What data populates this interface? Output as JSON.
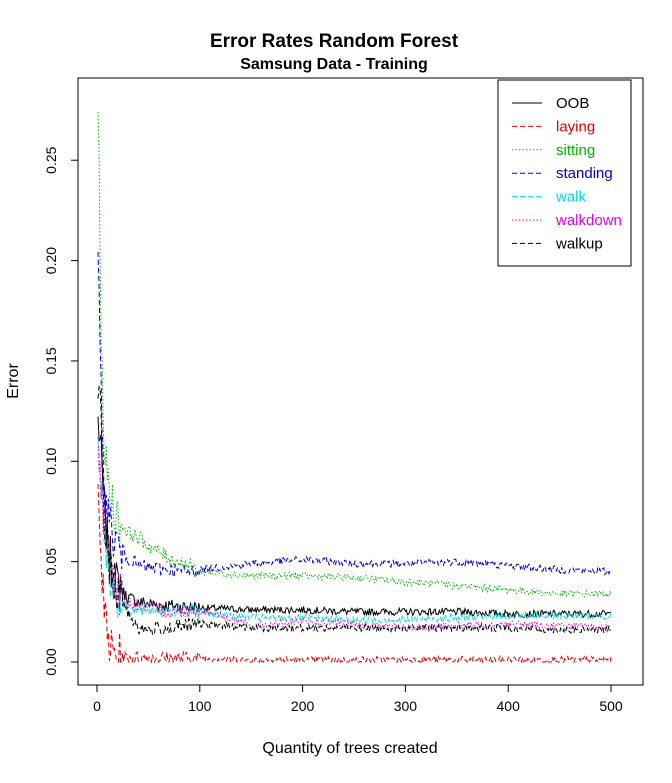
{
  "chart_data": {
    "type": "line",
    "title": "Error Rates Random Forest",
    "subtitle": "Samsung Data - Training",
    "xlabel": "Quantity of trees created",
    "ylabel": "Error",
    "xlim": [
      0,
      500
    ],
    "ylim": [
      0,
      0.28
    ],
    "xticks": [
      0,
      100,
      200,
      300,
      400,
      500
    ],
    "yticks": [
      0.0,
      0.05,
      0.1,
      0.15,
      0.2,
      0.25
    ],
    "xtick_labels": [
      "0",
      "100",
      "200",
      "300",
      "400",
      "500"
    ],
    "ytick_labels": [
      "0.00",
      "0.05",
      "0.10",
      "0.15",
      "0.20",
      "0.25"
    ],
    "grid": false,
    "legend_position": "top-right",
    "series": [
      {
        "name": "OOB",
        "color": "#000000",
        "dash": "solid",
        "x": [
          1,
          3,
          6,
          10,
          15,
          20,
          30,
          40,
          50,
          70,
          100,
          150,
          200,
          250,
          300,
          350,
          400,
          450,
          500
        ],
        "y": [
          0.12,
          0.11,
          0.085,
          0.06,
          0.045,
          0.038,
          0.032,
          0.03,
          0.029,
          0.028,
          0.027,
          0.026,
          0.026,
          0.025,
          0.025,
          0.025,
          0.024,
          0.024,
          0.024
        ]
      },
      {
        "name": "laying",
        "color": "#df0000",
        "dash": "dashed",
        "x": [
          1,
          3,
          5,
          8,
          12,
          16,
          20,
          30,
          50,
          100,
          150,
          200,
          300,
          400,
          500
        ],
        "y": [
          0.1,
          0.07,
          0.04,
          0.02,
          0.008,
          0.004,
          0.003,
          0.002,
          0.002,
          0.002,
          0.001,
          0.001,
          0.001,
          0.001,
          0.001
        ]
      },
      {
        "name": "sitting",
        "color": "#00b400",
        "dash": "dotted",
        "x": [
          1,
          3,
          5,
          8,
          12,
          16,
          20,
          30,
          40,
          50,
          70,
          90,
          100,
          150,
          200,
          250,
          300,
          350,
          400,
          450,
          500
        ],
        "y": [
          0.28,
          0.2,
          0.14,
          0.1,
          0.085,
          0.078,
          0.07,
          0.065,
          0.062,
          0.058,
          0.052,
          0.048,
          0.045,
          0.043,
          0.043,
          0.042,
          0.04,
          0.038,
          0.036,
          0.034,
          0.034
        ]
      },
      {
        "name": "standing",
        "color": "#0000d0",
        "dash": "dashed",
        "x": [
          1,
          3,
          5,
          8,
          12,
          16,
          20,
          30,
          40,
          50,
          70,
          90,
          100,
          150,
          200,
          250,
          300,
          350,
          400,
          450,
          500
        ],
        "y": [
          0.2,
          0.15,
          0.11,
          0.085,
          0.07,
          0.062,
          0.058,
          0.052,
          0.048,
          0.047,
          0.046,
          0.045,
          0.046,
          0.049,
          0.051,
          0.049,
          0.049,
          0.05,
          0.048,
          0.046,
          0.045
        ]
      },
      {
        "name": "walk",
        "color": "#00dcdc",
        "dash": "dashed",
        "x": [
          1,
          3,
          5,
          8,
          12,
          16,
          20,
          30,
          40,
          50,
          70,
          100,
          150,
          200,
          250,
          300,
          350,
          400,
          450,
          500
        ],
        "y": [
          0.12,
          0.1,
          0.08,
          0.06,
          0.045,
          0.038,
          0.032,
          0.027,
          0.025,
          0.026,
          0.026,
          0.025,
          0.022,
          0.022,
          0.021,
          0.021,
          0.022,
          0.023,
          0.023,
          0.023
        ]
      },
      {
        "name": "walkdown",
        "color": "#e000e0",
        "dash": "dotted",
        "x": [
          1,
          3,
          5,
          8,
          12,
          16,
          20,
          30,
          40,
          50,
          70,
          100,
          150,
          200,
          250,
          300,
          350,
          400,
          450,
          500
        ],
        "y": [
          0.11,
          0.095,
          0.08,
          0.06,
          0.05,
          0.042,
          0.036,
          0.03,
          0.028,
          0.027,
          0.025,
          0.026,
          0.018,
          0.02,
          0.019,
          0.017,
          0.018,
          0.019,
          0.018,
          0.017
        ]
      },
      {
        "name": "walkup",
        "color": "#000000",
        "dash": "dashed",
        "x": [
          1,
          3,
          5,
          8,
          12,
          16,
          20,
          30,
          40,
          50,
          70,
          100,
          150,
          200,
          250,
          300,
          350,
          400,
          450,
          500
        ],
        "y": [
          0.12,
          0.14,
          0.09,
          0.065,
          0.05,
          0.042,
          0.035,
          0.025,
          0.017,
          0.016,
          0.017,
          0.019,
          0.017,
          0.017,
          0.017,
          0.017,
          0.017,
          0.017,
          0.016,
          0.016
        ]
      }
    ]
  }
}
